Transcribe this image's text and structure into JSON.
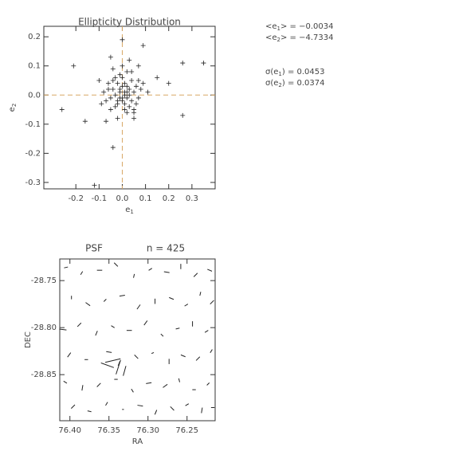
{
  "chart_data": [
    {
      "type": "scatter",
      "title": "Ellipticity Distribution",
      "xlabel": "e",
      "xlabel_sub": "1",
      "ylabel": "e",
      "ylabel_sub": "2",
      "x": [
        -0.21,
        -0.26,
        -0.12,
        0.0,
        -0.05,
        0.09,
        0.26,
        0.35,
        0.26,
        0.15,
        -0.07,
        -0.16,
        0.11,
        0.05,
        -0.04,
        0.07,
        -0.1,
        0.04,
        0.05,
        0.2,
        0.01,
        -0.01,
        0.02,
        -0.02,
        0.0,
        0.03,
        -0.03,
        0.01,
        -0.01,
        0.02,
        0.04,
        -0.04,
        0.0,
        0.01,
        -0.02,
        0.05,
        -0.05,
        0.03,
        -0.03,
        0.06,
        -0.06,
        0.0,
        0.02,
        -0.01,
        0.07,
        -0.07,
        0.04,
        -0.04,
        0.05,
        -0.05,
        0.08,
        -0.08,
        0.01,
        -0.01,
        0.02,
        0.0,
        -0.02,
        0.03,
        0.01,
        -0.03,
        0.06,
        -0.06,
        0.02,
        -0.09,
        0.09,
        0.0,
        -0.02,
        0.03,
        -0.04,
        0.07
      ],
      "y": [
        0.1,
        -0.05,
        -0.31,
        0.19,
        0.13,
        0.17,
        0.11,
        0.11,
        -0.07,
        0.06,
        -0.09,
        -0.09,
        0.01,
        -0.08,
        -0.18,
        0.1,
        0.05,
        0.08,
        -0.05,
        0.04,
        0.0,
        0.01,
        -0.01,
        -0.02,
        0.03,
        0.02,
        0.0,
        -0.03,
        -0.01,
        0.01,
        -0.02,
        0.02,
        -0.02,
        0.04,
        0.04,
        0.01,
        -0.01,
        -0.04,
        -0.04,
        0.03,
        0.02,
        0.06,
        -0.06,
        0.07,
        -0.01,
        -0.02,
        0.05,
        0.05,
        -0.06,
        -0.05,
        0.02,
        0.01,
        0.01,
        0.02,
        0.03,
        -0.01,
        -0.03,
        0.0,
        -0.05,
        0.06,
        -0.03,
        0.04,
        0.08,
        -0.03,
        0.04,
        0.1,
        -0.08,
        0.12,
        0.09,
        0.05
      ],
      "color": "#222222",
      "xlim": [
        -0.338,
        0.4
      ],
      "ylim": [
        -0.322,
        0.236
      ],
      "xticks": [
        -0.2,
        -0.1,
        {
          "value": 0,
          "label": "0.0"
        },
        0.1,
        0.2,
        0.3
      ],
      "yticks": [
        -0.3,
        -0.2,
        -0.1,
        {
          "value": 0,
          "label": "0.0"
        },
        0.1,
        0.2
      ],
      "ref_lines": {
        "x": 0,
        "y": 0,
        "color": "#d8a865"
      }
    },
    {
      "type": "whisker",
      "title": "PSF",
      "subtitle": "n = 425",
      "xlabel": "RA",
      "ylabel": "DEC",
      "x": [
        76.405,
        76.385,
        76.362,
        76.341,
        76.318,
        76.297,
        76.276,
        76.258,
        76.239,
        76.221,
        76.398,
        76.377,
        76.355,
        76.333,
        76.312,
        76.291,
        76.27,
        76.251,
        76.233,
        76.218,
        76.409,
        76.388,
        76.366,
        76.345,
        76.324,
        76.303,
        76.282,
        76.262,
        76.243,
        76.225,
        76.401,
        76.379,
        76.35,
        76.337,
        76.315,
        76.294,
        76.273,
        76.255,
        76.236,
        76.219,
        76.406,
        76.384,
        76.363,
        76.341,
        76.32,
        76.299,
        76.278,
        76.26,
        76.241,
        76.223,
        76.396,
        76.375,
        76.353,
        76.332,
        76.31,
        76.29,
        76.269,
        76.25,
        76.231,
        76.217,
        76.345,
        76.338,
        76.352,
        76.33
      ],
      "y": [
        -28.736,
        -28.742,
        -28.739,
        -28.733,
        -28.745,
        -28.738,
        -28.741,
        -28.735,
        -28.744,
        -28.739,
        -28.768,
        -28.775,
        -28.771,
        -28.766,
        -28.778,
        -28.772,
        -28.769,
        -28.776,
        -28.764,
        -28.773,
        -28.802,
        -28.797,
        -28.806,
        -28.799,
        -28.803,
        -28.795,
        -28.808,
        -28.801,
        -28.796,
        -28.804,
        -28.829,
        -28.834,
        -28.826,
        -28.838,
        -28.831,
        -28.827,
        -28.836,
        -28.83,
        -28.833,
        -28.825,
        -28.858,
        -28.864,
        -28.861,
        -28.855,
        -28.867,
        -28.859,
        -28.862,
        -28.856,
        -28.866,
        -28.86,
        -28.884,
        -28.889,
        -28.881,
        -28.887,
        -28.883,
        -28.89,
        -28.886,
        -28.882,
        -28.888,
        -28.885,
        -28.835,
        -28.842,
        -28.84,
        -28.846
      ],
      "e1": [
        0.02,
        -0.01,
        0.03,
        0.0,
        -0.02,
        0.01,
        0.03,
        -0.03,
        0.0,
        0.02,
        -0.02,
        0.01,
        0.0,
        0.03,
        -0.01,
        -0.03,
        0.02,
        0.01,
        -0.02,
        0.0,
        0.04,
        0.0,
        -0.02,
        0.01,
        0.03,
        -0.01,
        0.0,
        0.02,
        -0.03,
        0.01,
        -0.01,
        0.02,
        0.03,
        -0.02,
        0.0,
        0.01,
        -0.03,
        0.02,
        0.0,
        -0.01,
        0.01,
        -0.03,
        0.0,
        0.02,
        -0.01,
        0.03,
        0.01,
        -0.02,
        0.02,
        0.0,
        0.0,
        0.02,
        -0.01,
        0.01,
        0.03,
        -0.02,
        0.0,
        0.01,
        -0.03,
        0.02,
        0.08,
        -0.07,
        0.06,
        -0.05
      ],
      "e2": [
        0.01,
        0.02,
        0.0,
        -0.03,
        0.01,
        0.02,
        -0.01,
        0.0,
        0.03,
        -0.02,
        0.0,
        -0.03,
        0.02,
        0.01,
        0.03,
        0.0,
        -0.02,
        0.02,
        0.01,
        0.03,
        -0.01,
        0.03,
        0.02,
        -0.02,
        0.0,
        0.03,
        -0.02,
        0.01,
        0.0,
        0.02,
        0.03,
        0.0,
        -0.01,
        0.02,
        -0.03,
        0.01,
        0.0,
        -0.02,
        0.03,
        0.02,
        -0.02,
        0.01,
        0.03,
        0.0,
        -0.02,
        0.01,
        0.03,
        -0.01,
        0.0,
        0.02,
        0.03,
        -0.01,
        0.02,
        0.0,
        -0.01,
        0.02,
        -0.03,
        0.02,
        0.01,
        0.0,
        0.04,
        0.05,
        -0.05,
        0.03
      ],
      "color": "#222222",
      "xlim": [
        76.413,
        76.214
      ],
      "ylim": [
        -28.899,
        -28.727
      ],
      "xticks": [
        {
          "value": 76.4,
          "label": "76.40"
        },
        76.35,
        {
          "value": 76.3,
          "label": "76.30"
        },
        76.25
      ],
      "yticks": [
        -28.85,
        {
          "value": -28.8,
          "label": "-28.80"
        },
        -28.75
      ]
    }
  ],
  "annotations": [
    {
      "text": "<e",
      "sub": "1",
      "rest": "> = −0.0034"
    },
    {
      "text": "<e",
      "sub": "2",
      "rest": "> = −4.7334"
    },
    {
      "text": "σ(e",
      "sub": "1",
      "rest": ") = 0.0453"
    },
    {
      "text": "σ(e",
      "sub": "2",
      "rest": ") = 0.0374"
    }
  ]
}
